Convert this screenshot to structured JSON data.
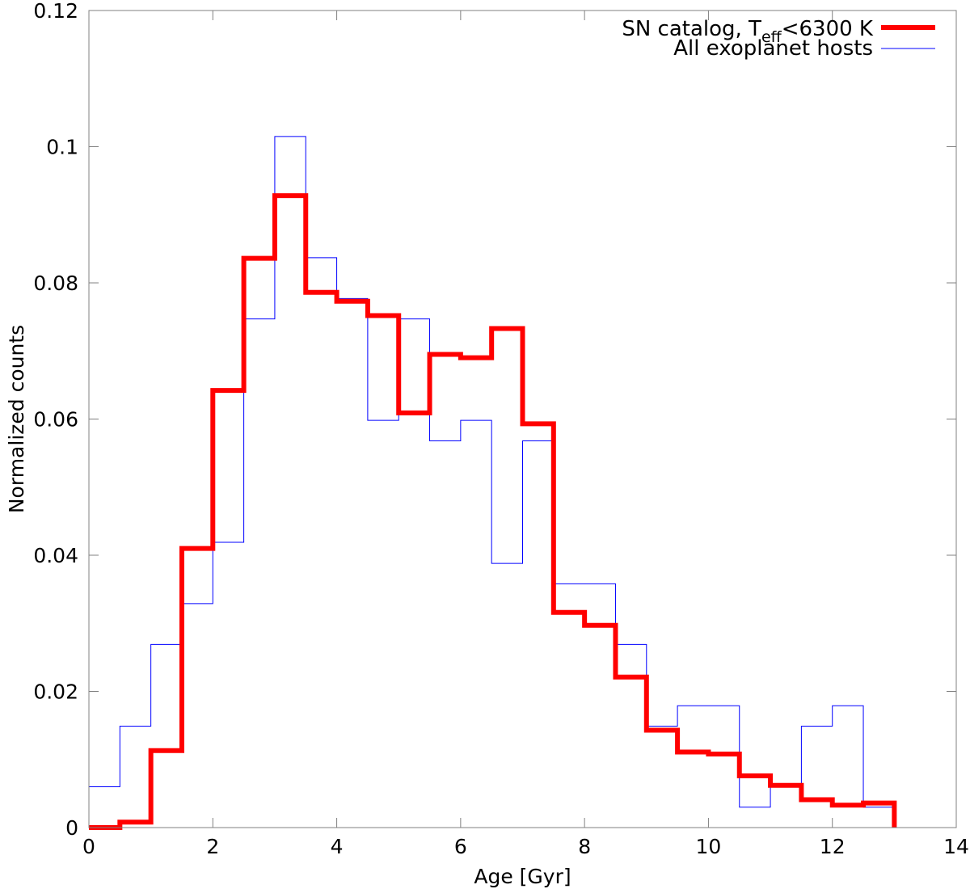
{
  "chart_data": {
    "type": "line",
    "step": true,
    "xlabel": "Age [Gyr]",
    "ylabel": "Normalized counts",
    "xlim": [
      0,
      14
    ],
    "ylim": [
      0,
      0.12
    ],
    "xticks": [
      0,
      2,
      4,
      6,
      8,
      10,
      12,
      14
    ],
    "xtick_labels": [
      "0",
      "2",
      "4",
      "6",
      "8",
      "10",
      "12",
      "14"
    ],
    "yticks": [
      0,
      0.02,
      0.04,
      0.06,
      0.08,
      0.1,
      0.12
    ],
    "ytick_labels": [
      "0",
      "0.02",
      "0.04",
      "0.06",
      "0.08",
      "0.1",
      "0.12"
    ],
    "grid": false,
    "legend_position": "top-right",
    "bin_edges": [
      0,
      0.5,
      1,
      1.5,
      2,
      2.5,
      3,
      3.5,
      4,
      4.5,
      5,
      5.5,
      6,
      6.5,
      7,
      7.5,
      8,
      8.5,
      9,
      9.5,
      10,
      10.5,
      11,
      11.5,
      12,
      12.5,
      13
    ],
    "series": [
      {
        "legend_main": "SN catalog, T",
        "legend_sub": "eff",
        "legend_rest": "<6300 K",
        "color": "#ff0000",
        "line_width": 6,
        "values": [
          0.0,
          0.0008,
          0.0113,
          0.041,
          0.0642,
          0.0836,
          0.0928,
          0.0786,
          0.0773,
          0.0752,
          0.0609,
          0.0695,
          0.069,
          0.0733,
          0.0593,
          0.0316,
          0.0297,
          0.0221,
          0.0143,
          0.0111,
          0.0108,
          0.0076,
          0.0062,
          0.0041,
          0.0033,
          0.0036
        ]
      },
      {
        "legend_main": "All exoplanet hosts",
        "color": "#0000ff",
        "line_width": 1,
        "values": [
          0.006,
          0.0149,
          0.0269,
          0.0329,
          0.0419,
          0.0747,
          0.1015,
          0.0837,
          0.0777,
          0.0598,
          0.0747,
          0.0568,
          0.0598,
          0.0388,
          0.0568,
          0.0358,
          0.0358,
          0.0269,
          0.0149,
          0.0179,
          0.0179,
          0.003,
          0.006,
          0.0149,
          0.0179,
          0.003
        ]
      }
    ]
  }
}
